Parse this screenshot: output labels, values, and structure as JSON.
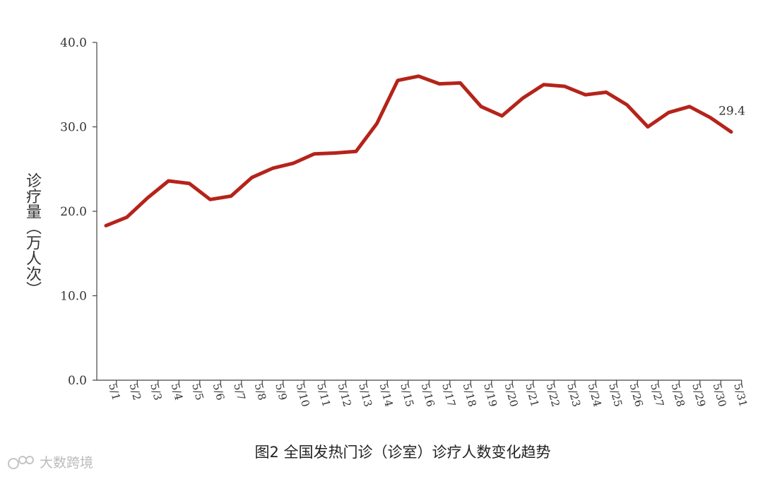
{
  "chart_data": {
    "type": "line",
    "ylabel": "诊疗量（万人次）",
    "ylim": [
      0,
      40
    ],
    "yticks": [
      "0.0",
      "10.0",
      "20.0",
      "30.0",
      "40.0"
    ],
    "categories": [
      "5/1",
      "5/2",
      "5/3",
      "5/4",
      "5/5",
      "5/6",
      "5/7",
      "5/8",
      "5/9",
      "5/10",
      "5/11",
      "5/12",
      "5/13",
      "5/14",
      "5/15",
      "5/16",
      "5/17",
      "5/18",
      "5/19",
      "5/20",
      "5/21",
      "5/22",
      "5/23",
      "5/24",
      "5/25",
      "5/26",
      "5/27",
      "5/28",
      "5/29",
      "5/30",
      "5/31"
    ],
    "series": [
      {
        "values": [
          18.3,
          19.3,
          21.6,
          23.6,
          23.3,
          21.4,
          21.8,
          24.0,
          25.1,
          25.7,
          26.8,
          26.9,
          27.1,
          30.4,
          35.5,
          36.0,
          35.1,
          35.2,
          32.4,
          31.3,
          33.4,
          35.0,
          34.8,
          33.8,
          34.1,
          32.6,
          30.0,
          31.7,
          32.4,
          31.1,
          29.4
        ],
        "color": "#b5231a"
      }
    ],
    "end_label": "29.4",
    "grid": false
  },
  "caption": "图2 全国发热门诊（诊室）诊疗人数变化趋势",
  "watermark": "大数跨境"
}
